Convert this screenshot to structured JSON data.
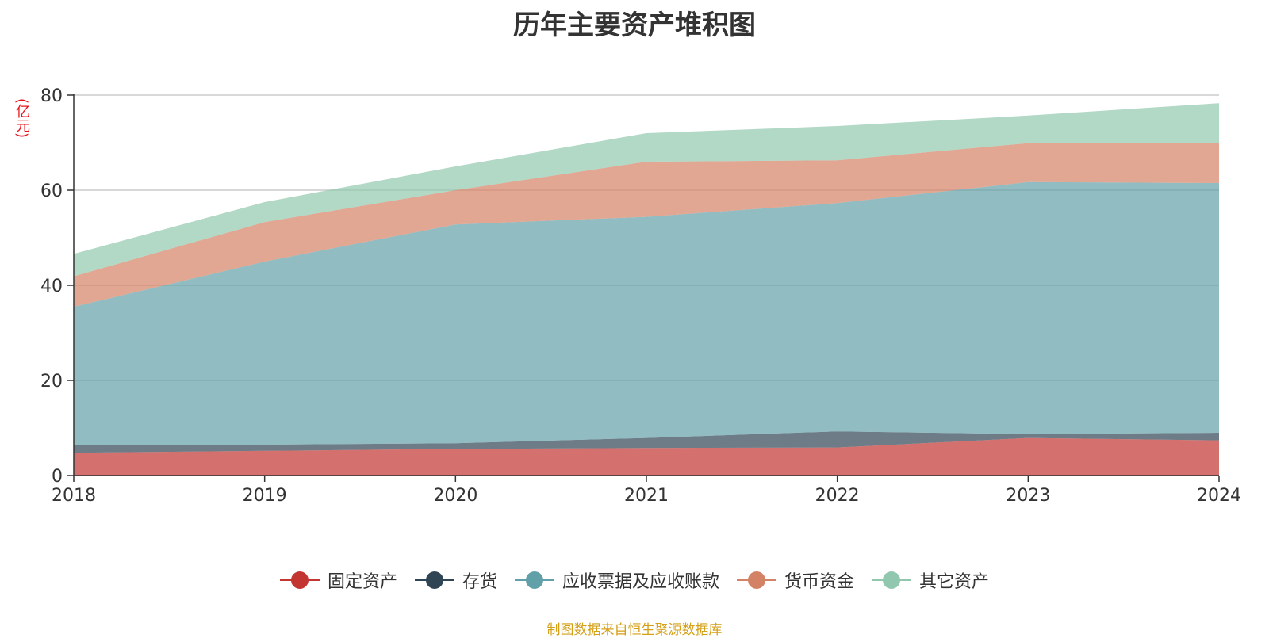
{
  "chart_data": {
    "type": "area",
    "stacked": true,
    "title": "历年主要资产堆积图",
    "ylabel": "(亿元)",
    "xlabel": "",
    "x": [
      "2018",
      "2019",
      "2020",
      "2021",
      "2022",
      "2023",
      "2024"
    ],
    "ylim": [
      0,
      80
    ],
    "yticks": [
      "0",
      "20",
      "40",
      "60",
      "80"
    ],
    "grid": true,
    "legend_position": "bottom",
    "series": [
      {
        "name": "固定资产",
        "color": "#c23531",
        "values": [
          4.8,
          5.2,
          5.6,
          5.8,
          5.9,
          7.9,
          7.4
        ]
      },
      {
        "name": "存货",
        "color": "#2f4554",
        "values": [
          1.7,
          1.3,
          1.2,
          2.1,
          3.4,
          0.8,
          1.6
        ]
      },
      {
        "name": "应收票据及应收账款",
        "color": "#61a0a8",
        "values": [
          29.0,
          38.5,
          46.0,
          46.5,
          48.0,
          53.0,
          52.5
        ]
      },
      {
        "name": "货币资金",
        "color": "#d48265",
        "values": [
          6.4,
          8.3,
          7.2,
          11.6,
          9.0,
          8.2,
          8.5
        ]
      },
      {
        "name": "其它资产",
        "color": "#91c7ae",
        "values": [
          4.7,
          4.2,
          5.0,
          6.0,
          7.2,
          5.8,
          8.3
        ]
      }
    ]
  },
  "source_text": "制图数据来自恒生聚源数据库"
}
